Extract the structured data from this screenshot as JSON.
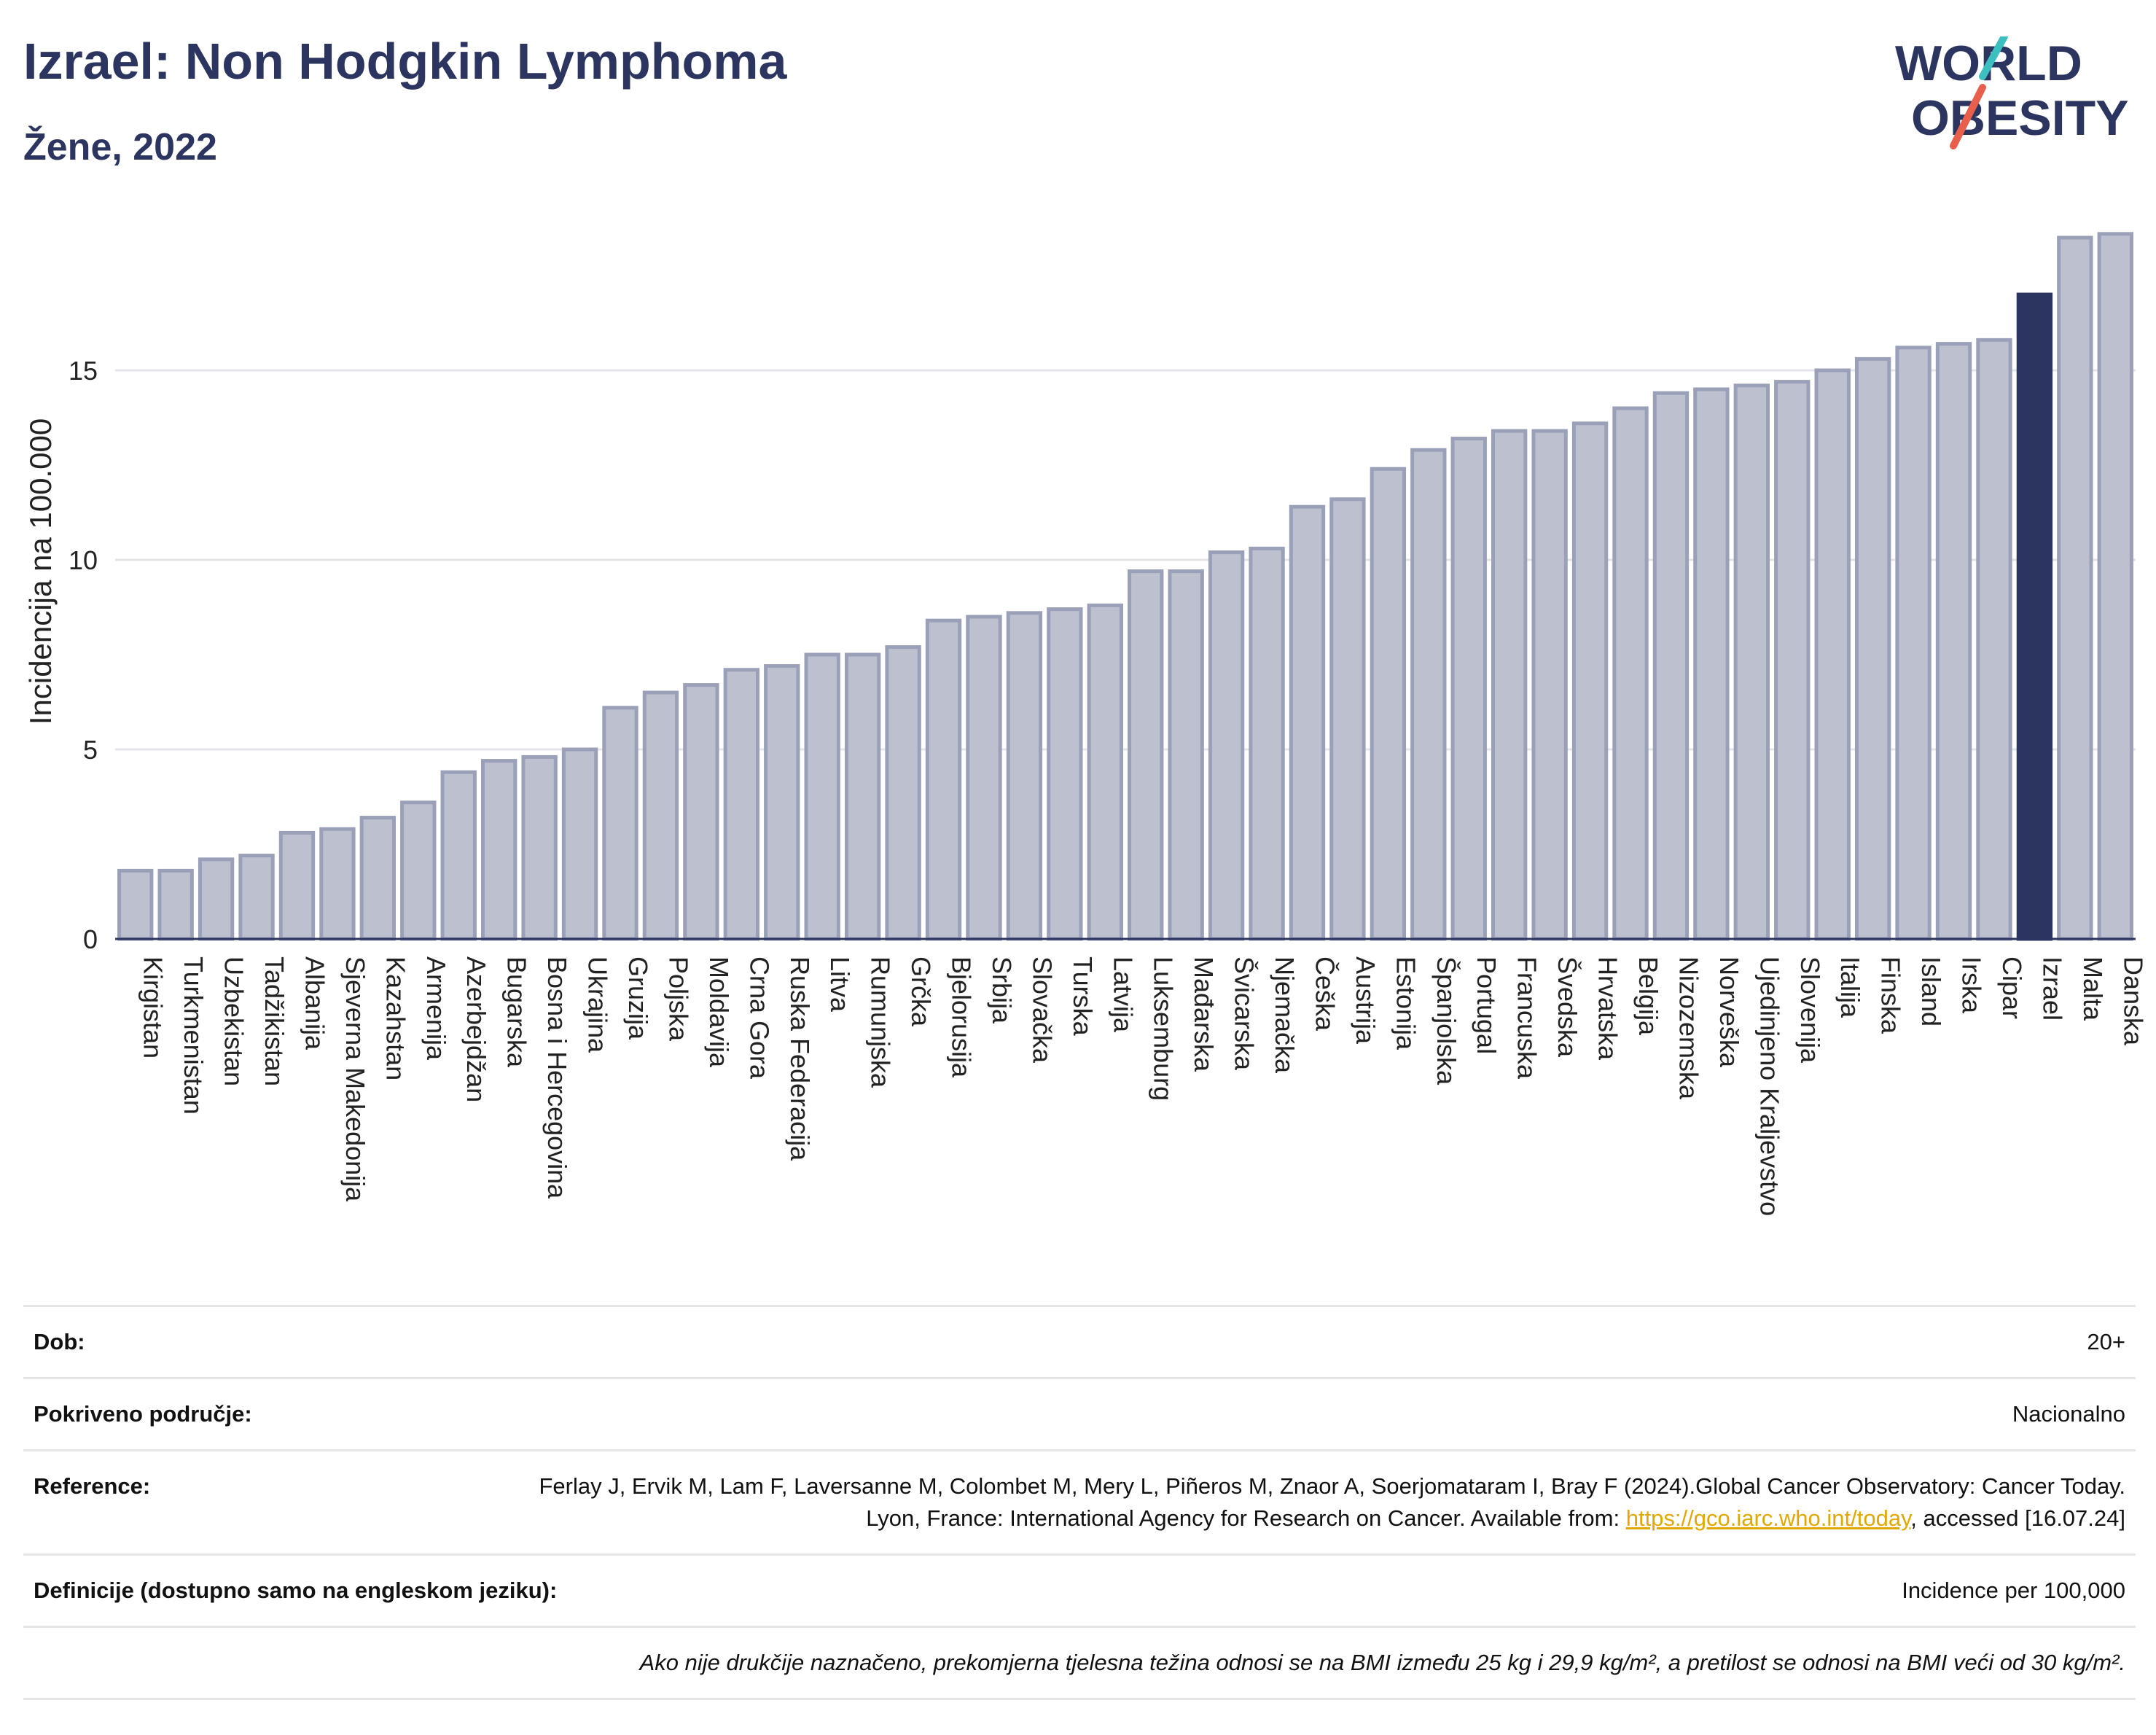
{
  "title": "Izrael: Non Hodgkin Lymphoma",
  "subtitle": "Žene, 2022",
  "logo": {
    "line1": "WORLD",
    "line2": "OBESITY",
    "colors": {
      "text": "#2b3560",
      "slash_top": "#3bbfbf",
      "slash_bottom": "#e8604c"
    }
  },
  "chart_data": {
    "type": "bar",
    "ylabel": "Incidencija na 100.000",
    "xlabel": "",
    "ylim": [
      0,
      19
    ],
    "yticks": [
      0,
      5,
      10,
      15
    ],
    "grid": true,
    "highlight": "Izrael",
    "colors": {
      "bar": "#bcc0cf",
      "bar_edge": "#9aa0b8",
      "highlight": "#2b3560"
    },
    "categories": [
      "Kirgistan",
      "Turkmenistan",
      "Uzbekistan",
      "Tadžikistan",
      "Albanija",
      "Sjeverna Makedonija",
      "Kazahstan",
      "Armenija",
      "Azerbejdžan",
      "Bugarska",
      "Bosna i Hercegovina",
      "Ukrajina",
      "Gruzija",
      "Poljska",
      "Moldavija",
      "Crna Gora",
      "Ruska Federacija",
      "Litva",
      "Rumunjska",
      "Grčka",
      "Bjelorusija",
      "Srbija",
      "Slovačka",
      "Turska",
      "Latvija",
      "Luksemburg",
      "Mađarska",
      "Švicarska",
      "Njemačka",
      "Češka",
      "Austrija",
      "Estonija",
      "Španjolska",
      "Portugal",
      "Francuska",
      "Švedska",
      "Hrvatska",
      "Belgija",
      "Nizozemska",
      "Norveška",
      "Ujedinjeno Kraljevstvo",
      "Slovenija",
      "Italija",
      "Finska",
      "Island",
      "Irska",
      "Cipar",
      "Izrael",
      "Malta",
      "Danska"
    ],
    "values": [
      1.8,
      1.8,
      2.1,
      2.2,
      2.8,
      2.9,
      3.2,
      3.6,
      4.4,
      4.7,
      4.8,
      5.0,
      6.1,
      6.5,
      6.7,
      7.1,
      7.2,
      7.5,
      7.5,
      7.7,
      8.4,
      8.5,
      8.6,
      8.7,
      8.8,
      9.7,
      9.7,
      10.2,
      10.3,
      11.4,
      11.6,
      12.4,
      12.9,
      13.2,
      13.4,
      13.4,
      13.6,
      14.0,
      14.4,
      14.5,
      14.6,
      14.7,
      15.0,
      15.3,
      15.6,
      15.7,
      15.8,
      17.0,
      18.5,
      18.6
    ]
  },
  "info": {
    "dob_label": "Dob:",
    "dob_value": "20+",
    "coverage_label": "Pokriveno područje:",
    "coverage_value": "Nacionalno",
    "reference_label": "Reference:",
    "reference_text_1": "Ferlay J, Ervik M, Lam F, Laversanne M, Colombet M, Mery L, Piñeros M, Znaor A, Soerjomataram I, Bray F (2024).Global Cancer Observatory: Cancer Today. Lyon, France: International Agency for Research on Cancer. Available from: ",
    "reference_link": "https://gco.iarc.who.int/today",
    "reference_text_2": ", accessed [16.07.24]",
    "definitions_label": "Definicije (dostupno samo na engleskom jeziku):",
    "definitions_value": "Incidence per 100,000",
    "footnote": "Ako nije drukčije naznačeno, prekomjerna tjelesna težina odnosi se na BMI između 25 kg i 29,9 kg/m², a pretilost se odnosi na BMI veći od 30 kg/m²."
  }
}
